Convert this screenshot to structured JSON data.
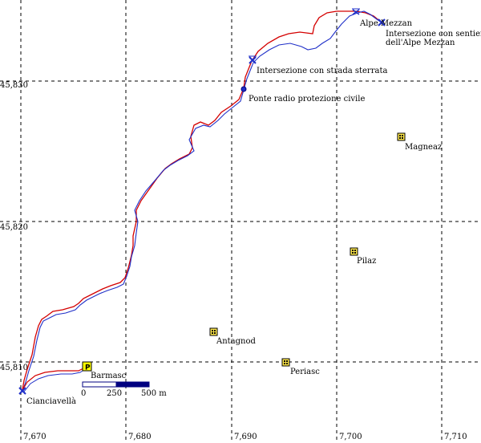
{
  "x_ticks": [
    "7,670",
    "7,680",
    "7,690",
    "7,700",
    "7,710"
  ],
  "y_ticks": [
    "45,830",
    "45,820",
    "45,810"
  ],
  "places": {
    "alpe_mezzan": "Alpe Mezzan",
    "intersezione_sentiero_line1": "Intersezione con sentiero",
    "intersezione_sentiero_line2": "dell'Alpe Mezzan",
    "intersezione_strada": "Intersezione con strada sterrata",
    "ponte_radio": "Ponte radio protezione civile",
    "magneaz": "Magneaz",
    "pilaz": "Pilaz",
    "antagnod": "Antagnod",
    "periasc": "Periasc",
    "barmasc": "Barmasc",
    "cianciavella": "Cianciavellà"
  },
  "scale_bar": {
    "label_0": "0",
    "label_250": "250",
    "label_500": "500 m"
  },
  "parking_letter": "P",
  "colors": {
    "track_red": "#d40000",
    "track_blue": "#1f2fc8",
    "scale_dark": "#000080",
    "building_yellow": "#ffe84a",
    "parking_yellow": "#ffff00",
    "waypoint_blue": "#1f2fc8"
  },
  "icons": [
    "building-icon",
    "parking-icon",
    "waypoint-cross-icon",
    "waypoint-circle-icon"
  ]
}
